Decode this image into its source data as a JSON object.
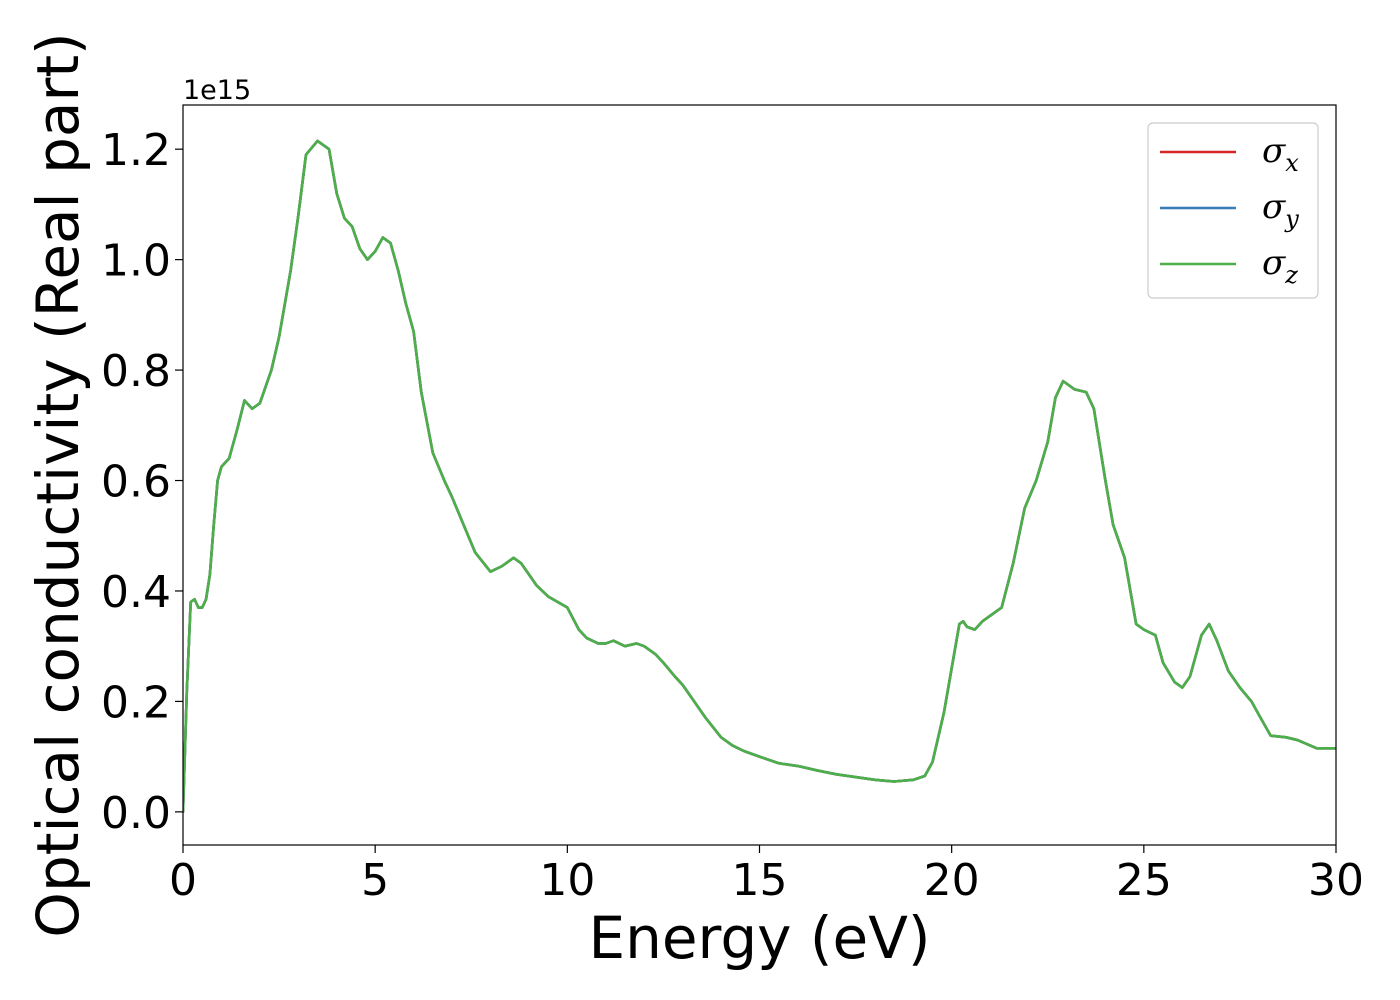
{
  "chart_data": {
    "type": "line",
    "title": "",
    "xlabel": "Energy (eV)",
    "ylabel": "Optical conductivity (Real part)",
    "y_offset_label": "1e15",
    "y_scale": 1000000000000000.0,
    "xlim": [
      0,
      30
    ],
    "ylim": [
      -0.06,
      1.28
    ],
    "x_ticks": [
      0,
      5,
      10,
      15,
      20,
      25,
      30
    ],
    "x_tick_labels": [
      "0",
      "5",
      "10",
      "15",
      "20",
      "25",
      "30"
    ],
    "y_ticks": [
      0.0,
      0.2,
      0.4,
      0.6,
      0.8,
      1.0,
      1.2
    ],
    "y_tick_labels": [
      "0.0",
      "0.2",
      "0.4",
      "0.6",
      "0.8",
      "1.0",
      "1.2"
    ],
    "grid": false,
    "legend_position": "top-right",
    "legend": [
      {
        "base": "σ",
        "sub": "x",
        "color": "#d62728"
      },
      {
        "base": "σ",
        "sub": "y",
        "color": "#377eb8"
      },
      {
        "base": "σ",
        "sub": "z",
        "color": "#4daf4a"
      }
    ],
    "x": [
      0,
      0.1,
      0.2,
      0.3,
      0.4,
      0.5,
      0.6,
      0.7,
      0.8,
      0.9,
      1.0,
      1.2,
      1.4,
      1.6,
      1.8,
      2.0,
      2.1,
      2.3,
      2.5,
      2.8,
      3.0,
      3.2,
      3.5,
      3.8,
      4.0,
      4.2,
      4.4,
      4.6,
      4.8,
      5.0,
      5.2,
      5.4,
      5.6,
      5.7,
      5.8,
      6.0,
      6.2,
      6.5,
      6.8,
      7.0,
      7.3,
      7.6,
      8.0,
      8.3,
      8.6,
      8.8,
      9.0,
      9.2,
      9.5,
      10.0,
      10.3,
      10.5,
      10.8,
      11.0,
      11.2,
      11.5,
      11.8,
      12.0,
      12.3,
      12.5,
      12.8,
      13.0,
      13.3,
      13.6,
      14.0,
      14.3,
      14.6,
      15.0,
      15.5,
      16.0,
      16.5,
      17.0,
      17.5,
      18.0,
      18.5,
      19.0,
      19.3,
      19.5,
      19.8,
      20.0,
      20.2,
      20.3,
      20.4,
      20.6,
      20.8,
      21.0,
      21.3,
      21.6,
      21.9,
      22.2,
      22.5,
      22.7,
      22.9,
      23.0,
      23.2,
      23.5,
      23.7,
      24.0,
      24.2,
      24.5,
      24.8,
      25.0,
      25.3,
      25.5,
      25.8,
      26.0,
      26.2,
      26.5,
      26.7,
      26.9,
      27.2,
      27.5,
      27.8,
      28.0,
      28.3,
      28.7,
      29.0,
      29.5,
      30.0
    ],
    "series": [
      {
        "name": "σx",
        "color": "#d62728",
        "values": [
          0.0,
          0.22,
          0.38,
          0.385,
          0.37,
          0.37,
          0.385,
          0.43,
          0.52,
          0.6,
          0.625,
          0.64,
          0.69,
          0.745,
          0.73,
          0.74,
          0.76,
          0.8,
          0.86,
          0.98,
          1.08,
          1.19,
          1.215,
          1.2,
          1.12,
          1.075,
          1.06,
          1.02,
          1.0,
          1.015,
          1.04,
          1.03,
          0.98,
          0.95,
          0.92,
          0.87,
          0.76,
          0.65,
          0.6,
          0.57,
          0.52,
          0.47,
          0.435,
          0.445,
          0.46,
          0.45,
          0.43,
          0.41,
          0.39,
          0.37,
          0.33,
          0.315,
          0.305,
          0.305,
          0.31,
          0.3,
          0.305,
          0.3,
          0.285,
          0.27,
          0.245,
          0.23,
          0.2,
          0.17,
          0.135,
          0.12,
          0.11,
          0.1,
          0.088,
          0.083,
          0.075,
          0.068,
          0.063,
          0.058,
          0.055,
          0.058,
          0.065,
          0.09,
          0.18,
          0.26,
          0.34,
          0.345,
          0.335,
          0.33,
          0.345,
          0.355,
          0.37,
          0.45,
          0.55,
          0.6,
          0.67,
          0.75,
          0.78,
          0.775,
          0.765,
          0.76,
          0.73,
          0.6,
          0.52,
          0.46,
          0.34,
          0.33,
          0.32,
          0.27,
          0.235,
          0.225,
          0.245,
          0.32,
          0.34,
          0.31,
          0.255,
          0.225,
          0.2,
          0.175,
          0.138,
          0.135,
          0.13,
          0.115,
          0.115
        ]
      },
      {
        "name": "σy",
        "color": "#377eb8",
        "values": [
          0.0,
          0.22,
          0.38,
          0.385,
          0.37,
          0.37,
          0.385,
          0.43,
          0.52,
          0.6,
          0.625,
          0.64,
          0.69,
          0.745,
          0.73,
          0.74,
          0.76,
          0.8,
          0.86,
          0.98,
          1.08,
          1.19,
          1.215,
          1.2,
          1.12,
          1.075,
          1.06,
          1.02,
          1.0,
          1.015,
          1.04,
          1.03,
          0.98,
          0.95,
          0.92,
          0.87,
          0.76,
          0.65,
          0.6,
          0.57,
          0.52,
          0.47,
          0.435,
          0.445,
          0.46,
          0.45,
          0.43,
          0.41,
          0.39,
          0.37,
          0.33,
          0.315,
          0.305,
          0.305,
          0.31,
          0.3,
          0.305,
          0.3,
          0.285,
          0.27,
          0.245,
          0.23,
          0.2,
          0.17,
          0.135,
          0.12,
          0.11,
          0.1,
          0.088,
          0.083,
          0.075,
          0.068,
          0.063,
          0.058,
          0.055,
          0.058,
          0.065,
          0.09,
          0.18,
          0.26,
          0.34,
          0.345,
          0.335,
          0.33,
          0.345,
          0.355,
          0.37,
          0.45,
          0.55,
          0.6,
          0.67,
          0.75,
          0.78,
          0.775,
          0.765,
          0.76,
          0.73,
          0.6,
          0.52,
          0.46,
          0.34,
          0.33,
          0.32,
          0.27,
          0.235,
          0.225,
          0.245,
          0.32,
          0.34,
          0.31,
          0.255,
          0.225,
          0.2,
          0.175,
          0.138,
          0.135,
          0.13,
          0.115,
          0.115
        ]
      },
      {
        "name": "σz",
        "color": "#4daf4a",
        "values": [
          0.0,
          0.22,
          0.38,
          0.385,
          0.37,
          0.37,
          0.385,
          0.43,
          0.52,
          0.6,
          0.625,
          0.64,
          0.69,
          0.745,
          0.73,
          0.74,
          0.76,
          0.8,
          0.86,
          0.98,
          1.08,
          1.19,
          1.215,
          1.2,
          1.12,
          1.075,
          1.06,
          1.02,
          1.0,
          1.015,
          1.04,
          1.03,
          0.98,
          0.95,
          0.92,
          0.87,
          0.76,
          0.65,
          0.6,
          0.57,
          0.52,
          0.47,
          0.435,
          0.445,
          0.46,
          0.45,
          0.43,
          0.41,
          0.39,
          0.37,
          0.33,
          0.315,
          0.305,
          0.305,
          0.31,
          0.3,
          0.305,
          0.3,
          0.285,
          0.27,
          0.245,
          0.23,
          0.2,
          0.17,
          0.135,
          0.12,
          0.11,
          0.1,
          0.088,
          0.083,
          0.075,
          0.068,
          0.063,
          0.058,
          0.055,
          0.058,
          0.065,
          0.09,
          0.18,
          0.26,
          0.34,
          0.345,
          0.335,
          0.33,
          0.345,
          0.355,
          0.37,
          0.45,
          0.55,
          0.6,
          0.67,
          0.75,
          0.78,
          0.775,
          0.765,
          0.76,
          0.73,
          0.6,
          0.52,
          0.46,
          0.34,
          0.33,
          0.32,
          0.27,
          0.235,
          0.225,
          0.245,
          0.32,
          0.34,
          0.31,
          0.255,
          0.225,
          0.2,
          0.175,
          0.138,
          0.135,
          0.13,
          0.115,
          0.115
        ]
      }
    ]
  }
}
